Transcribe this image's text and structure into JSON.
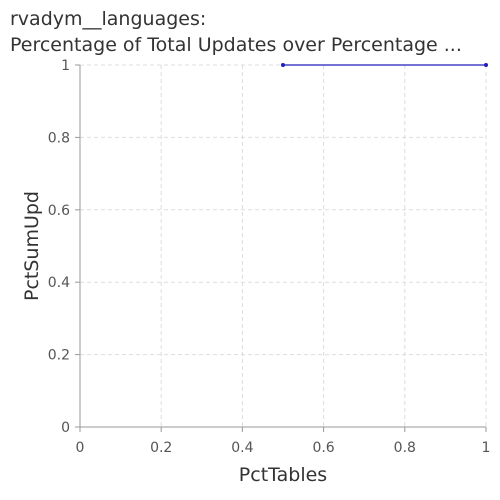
{
  "chart_data": {
    "type": "line",
    "title_lines": [
      "rvadym__languages:",
      "Percentage of Total Updates over Percentage ..."
    ],
    "xlabel": "PctTables",
    "ylabel": "PctSumUpd",
    "xlim": [
      0,
      1
    ],
    "ylim": [
      0,
      1
    ],
    "xticks": [
      0,
      0.2,
      0.4,
      0.6,
      0.8,
      1
    ],
    "yticks": [
      0,
      0.2,
      0.4,
      0.6,
      0.8,
      1
    ],
    "xtick_labels": [
      "0",
      "0.2",
      "0.4",
      "0.6",
      "0.8",
      "1"
    ],
    "ytick_labels": [
      "0",
      "0.2",
      "0.4",
      "0.6",
      "0.8",
      "1"
    ],
    "grid": true,
    "series": [
      {
        "x": [
          0.5,
          1.0
        ],
        "y": [
          1.0,
          1.0
        ],
        "color": "#1f1fbf"
      }
    ]
  }
}
